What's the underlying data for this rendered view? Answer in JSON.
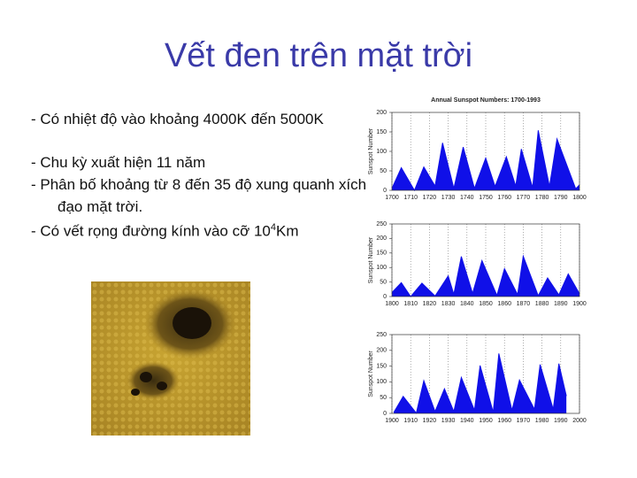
{
  "title": "Vết đen trên mặt trời",
  "bullets": [
    {
      "text": "- Có nhiệt độ vào khoảng 4000K đến 5000K"
    },
    {
      "text": "- Chu kỳ xuất hiện 11 năm"
    },
    {
      "text": "- Phân bố khoảng từ 8 đến 35 độ xung quanh xích đạo mặt trời."
    },
    {
      "text": "- Có vết rọng đường kính vào cỡ 10",
      "sup": "4",
      "after": "Km"
    }
  ],
  "chart_data": [
    {
      "type": "area",
      "title": "Annual Sunspot Numbers: 1700-1993",
      "y_label": "Sunspot Number",
      "color": "#1010e8",
      "grid": true,
      "x": [
        1700,
        1705,
        1712,
        1717,
        1723,
        1727,
        1733,
        1738,
        1744,
        1750,
        1755,
        1761,
        1766,
        1769,
        1775,
        1778,
        1784,
        1788,
        1798,
        1800
      ],
      "values": [
        5,
        58,
        0,
        60,
        11,
        122,
        5,
        111,
        5,
        83,
        10,
        86,
        11,
        106,
        7,
        154,
        10,
        132,
        4,
        14
      ],
      "xlim": [
        1700,
        1800
      ],
      "xticks": [
        1700,
        1710,
        1720,
        1730,
        1740,
        1750,
        1760,
        1770,
        1780,
        1790,
        1800
      ],
      "ylim": [
        0,
        200
      ],
      "yticks": [
        0,
        50,
        100,
        150,
        200
      ]
    },
    {
      "type": "area",
      "y_label": "Sunspot Number",
      "color": "#1010e8",
      "grid": true,
      "x": [
        1800,
        1805,
        1810,
        1816,
        1823,
        1830,
        1833,
        1837,
        1843,
        1848,
        1856,
        1860,
        1867,
        1870,
        1878,
        1883,
        1889,
        1894,
        1900
      ],
      "values": [
        14,
        48,
        0,
        46,
        2,
        71,
        8,
        138,
        11,
        124,
        4,
        96,
        7,
        139,
        3,
        64,
        6,
        78,
        10
      ],
      "xlim": [
        1800,
        1900
      ],
      "xticks": [
        1800,
        1810,
        1820,
        1830,
        1840,
        1850,
        1860,
        1870,
        1880,
        1890,
        1900
      ],
      "ylim": [
        0,
        250
      ],
      "yticks": [
        0,
        50,
        100,
        150,
        200,
        250
      ]
    },
    {
      "type": "area",
      "y_label": "Sunspot Number",
      "color": "#1010e8",
      "grid": true,
      "x": [
        1901,
        1906,
        1913,
        1917,
        1923,
        1928,
        1933,
        1937,
        1944,
        1947,
        1954,
        1957,
        1964,
        1968,
        1976,
        1979,
        1986,
        1989,
        1993
      ],
      "values": [
        3,
        54,
        1,
        104,
        6,
        78,
        6,
        114,
        10,
        152,
        4,
        190,
        10,
        106,
        13,
        155,
        13,
        158,
        55
      ],
      "xlim": [
        1900,
        2000
      ],
      "xticks": [
        1900,
        1910,
        1920,
        1930,
        1940,
        1950,
        1960,
        1970,
        1980,
        1990,
        2000
      ],
      "ylim": [
        0,
        250
      ],
      "yticks": [
        0,
        50,
        100,
        150,
        200,
        250
      ]
    }
  ]
}
